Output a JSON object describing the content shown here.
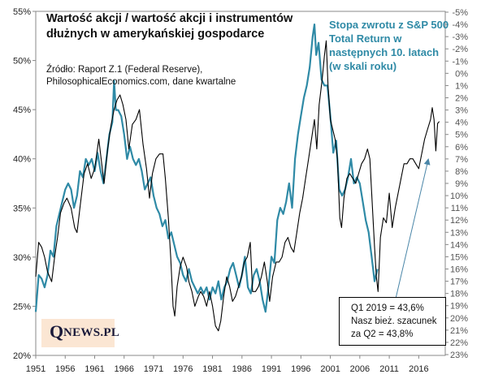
{
  "title": "Wartość akcji / wartość akcji i instrumentów dłużnych w amerykańskiej gospodarce",
  "source_line1": "Źródło: Raport Z.1 (Federal Reserve),",
  "source_line2": "PhilosophicalEconomics.com, dane kwartalne",
  "right_axis_title": "Stopa zwrotu z S&P 500 Total Return w następnych 10. latach (w skali roku)",
  "note": {
    "line1": "Q1 2019 = 43,6%",
    "line2": "Nasz bież. szacunek",
    "line3": "za Q2 = 43,8%"
  },
  "logo": {
    "big": "Q",
    "small": "NEWS.PL"
  },
  "colors": {
    "equity_share": "#000000",
    "sp500_return": "#2f8aa6",
    "arrow": "#4a86a8"
  },
  "chart_data": {
    "type": "line",
    "x_ticks": [
      "1951",
      "1956",
      "1961",
      "1966",
      "1971",
      "1976",
      "1981",
      "1986",
      "1991",
      "1996",
      "2001",
      "2006",
      "2011",
      "2016"
    ],
    "xlim": [
      1951,
      2020.5
    ],
    "y_left": {
      "ticks": [
        "20%",
        "25%",
        "30%",
        "35%",
        "40%",
        "45%",
        "50%",
        "55%"
      ],
      "lim": [
        20,
        55
      ]
    },
    "y_right": {
      "ticks": [
        "-5%",
        "-4%",
        "-3%",
        "-2%",
        "-1%",
        "0%",
        "1%",
        "2%",
        "3%",
        "4%",
        "5%",
        "6%",
        "7%",
        "8%",
        "9%",
        "10%",
        "11%",
        "12%",
        "13%",
        "14%",
        "15%",
        "16%",
        "17%",
        "18%",
        "19%",
        "20%",
        "21%",
        "22%",
        "23%"
      ],
      "lim_top": -5,
      "lim_bottom": 23
    },
    "grid": false,
    "series": [
      {
        "axis": "left",
        "points": [
          [
            1951,
            28.0
          ],
          [
            1951.5,
            31.5
          ],
          [
            1952,
            31.0
          ],
          [
            1952.5,
            30.0
          ],
          [
            1953,
            28.5
          ],
          [
            1953.7,
            27.5
          ],
          [
            1954.2,
            30.0
          ],
          [
            1954.7,
            32.0
          ],
          [
            1955.2,
            34.5
          ],
          [
            1955.8,
            35.5
          ],
          [
            1956.3,
            36.0
          ],
          [
            1957,
            35.0
          ],
          [
            1957.6,
            33.0
          ],
          [
            1958,
            32.5
          ],
          [
            1958.6,
            35.5
          ],
          [
            1959.2,
            38.5
          ],
          [
            1959.8,
            39.5
          ],
          [
            1960.4,
            38.0
          ],
          [
            1961,
            39.0
          ],
          [
            1961.7,
            42.0
          ],
          [
            1962.2,
            39.5
          ],
          [
            1962.6,
            37.5
          ],
          [
            1963.2,
            41.0
          ],
          [
            1963.8,
            43.5
          ],
          [
            1964.3,
            45.0
          ],
          [
            1964.8,
            46.0
          ],
          [
            1965.3,
            46.5
          ],
          [
            1965.8,
            45.5
          ],
          [
            1966.3,
            44.0
          ],
          [
            1966.8,
            41.0
          ],
          [
            1967.4,
            43.5
          ],
          [
            1968,
            44.0
          ],
          [
            1968.6,
            45.0
          ],
          [
            1969.2,
            41.5
          ],
          [
            1969.8,
            39.0
          ],
          [
            1970.3,
            36.0
          ],
          [
            1970.8,
            38.5
          ],
          [
            1971.4,
            40.0
          ],
          [
            1972,
            40.5
          ],
          [
            1972.6,
            40.5
          ],
          [
            1973,
            38.0
          ],
          [
            1973.5,
            34.0
          ],
          [
            1973.9,
            30.0
          ],
          [
            1974.3,
            25.0
          ],
          [
            1974.6,
            24.0
          ],
          [
            1975,
            27.0
          ],
          [
            1975.5,
            29.0
          ],
          [
            1976,
            30.0
          ],
          [
            1976.6,
            29.0
          ],
          [
            1977,
            27.5
          ],
          [
            1977.5,
            26.5
          ],
          [
            1978,
            25.0
          ],
          [
            1978.6,
            26.0
          ],
          [
            1979,
            26.5
          ],
          [
            1979.5,
            26.0
          ],
          [
            1980,
            25.0
          ],
          [
            1980.5,
            26.5
          ],
          [
            1981,
            25.0
          ],
          [
            1981.5,
            23.0
          ],
          [
            1982,
            22.5
          ],
          [
            1982.4,
            23.5
          ],
          [
            1982.9,
            26.0
          ],
          [
            1983.4,
            28.0
          ],
          [
            1983.9,
            27.0
          ],
          [
            1984.4,
            25.5
          ],
          [
            1984.9,
            26.0
          ],
          [
            1985.4,
            27.0
          ],
          [
            1985.9,
            28.0
          ],
          [
            1986.4,
            29.5
          ],
          [
            1986.9,
            30.0
          ],
          [
            1987.4,
            31.5
          ],
          [
            1987.8,
            26.5
          ],
          [
            1988.3,
            26.5
          ],
          [
            1988.8,
            27.0
          ],
          [
            1989.3,
            28.0
          ],
          [
            1989.8,
            29.5
          ],
          [
            1990.3,
            27.5
          ],
          [
            1990.7,
            25.5
          ],
          [
            1991.2,
            28.0
          ],
          [
            1991.8,
            29.5
          ],
          [
            1992.3,
            29.5
          ],
          [
            1992.8,
            30.0
          ],
          [
            1993.3,
            31.5
          ],
          [
            1993.8,
            32.0
          ],
          [
            1994.3,
            31.0
          ],
          [
            1994.8,
            30.5
          ],
          [
            1995.3,
            32.5
          ],
          [
            1995.8,
            34.5
          ],
          [
            1996.3,
            36.0
          ],
          [
            1996.8,
            38.0
          ],
          [
            1997.3,
            40.0
          ],
          [
            1997.8,
            42.0
          ],
          [
            1998.3,
            44.0
          ],
          [
            1998.7,
            41.0
          ],
          [
            1999.1,
            45.5
          ],
          [
            1999.6,
            48.0
          ],
          [
            2000,
            50.5
          ],
          [
            2000.3,
            52.0
          ],
          [
            2000.6,
            47.5
          ],
          [
            2001,
            44.0
          ],
          [
            2001.4,
            43.0
          ],
          [
            2001.8,
            42.0
          ],
          [
            2002.2,
            40.0
          ],
          [
            2002.6,
            34.0
          ],
          [
            2002.9,
            33.0
          ],
          [
            2003.3,
            36.0
          ],
          [
            2003.8,
            38.0
          ],
          [
            2004.3,
            38.5
          ],
          [
            2004.8,
            38.0
          ],
          [
            2005.3,
            37.5
          ],
          [
            2005.8,
            38.5
          ],
          [
            2006.3,
            39.5
          ],
          [
            2006.8,
            40.0
          ],
          [
            2007.3,
            41.0
          ],
          [
            2007.7,
            40.0
          ],
          [
            2008.1,
            35.5
          ],
          [
            2008.5,
            31.0
          ],
          [
            2008.8,
            28.0
          ],
          [
            2009.1,
            26.5
          ],
          [
            2009.5,
            32.0
          ],
          [
            2010,
            34.0
          ],
          [
            2010.5,
            33.5
          ],
          [
            2011,
            36.5
          ],
          [
            2011.5,
            33.0
          ],
          [
            2012,
            35.0
          ],
          [
            2012.5,
            36.5
          ],
          [
            2013,
            38.0
          ],
          [
            2013.5,
            39.5
          ],
          [
            2014,
            39.5
          ],
          [
            2014.5,
            40.0
          ],
          [
            2015,
            40.0
          ],
          [
            2015.5,
            39.5
          ],
          [
            2016,
            39.0
          ],
          [
            2016.5,
            40.5
          ],
          [
            2017,
            42.0
          ],
          [
            2017.5,
            43.0
          ],
          [
            2018,
            44.0
          ],
          [
            2018.3,
            45.2
          ],
          [
            2018.6,
            44.0
          ],
          [
            2018.9,
            40.8
          ],
          [
            2019.2,
            43.6
          ],
          [
            2019.5,
            43.8
          ]
        ]
      },
      {
        "axis": "right",
        "points": [
          [
            1951,
            19.5
          ],
          [
            1951.5,
            16.5
          ],
          [
            1952,
            16.8
          ],
          [
            1952.5,
            17.5
          ],
          [
            1953,
            16.5
          ],
          [
            1953.5,
            14.5
          ],
          [
            1954,
            15.0
          ],
          [
            1954.5,
            12.5
          ],
          [
            1955,
            11.5
          ],
          [
            1955.5,
            10.5
          ],
          [
            1956,
            9.5
          ],
          [
            1956.5,
            9.0
          ],
          [
            1957,
            9.5
          ],
          [
            1957.5,
            11.0
          ],
          [
            1958,
            10.0
          ],
          [
            1958.5,
            8.0
          ],
          [
            1959,
            8.5
          ],
          [
            1959.5,
            7.0
          ],
          [
            1960,
            7.5
          ],
          [
            1960.5,
            7.0
          ],
          [
            1961,
            8.0
          ],
          [
            1961.5,
            6.5
          ],
          [
            1962,
            8.0
          ],
          [
            1962.5,
            9.0
          ],
          [
            1963,
            7.0
          ],
          [
            1963.5,
            5.0
          ],
          [
            1964,
            4.0
          ],
          [
            1964.3,
            0.6
          ],
          [
            1964.6,
            3.0
          ],
          [
            1965,
            3.0
          ],
          [
            1965.5,
            3.5
          ],
          [
            1966,
            5.0
          ],
          [
            1966.5,
            7.0
          ],
          [
            1967,
            6.0
          ],
          [
            1967.5,
            7.0
          ],
          [
            1968,
            7.5
          ],
          [
            1968.5,
            7.0
          ],
          [
            1969,
            8.0
          ],
          [
            1969.5,
            9.5
          ],
          [
            1970,
            9.0
          ],
          [
            1970.5,
            8.5
          ],
          [
            1971,
            10.0
          ],
          [
            1971.5,
            11.0
          ],
          [
            1972,
            11.5
          ],
          [
            1972.5,
            12.5
          ],
          [
            1973,
            12.0
          ],
          [
            1973.5,
            13.5
          ],
          [
            1974,
            13.0
          ],
          [
            1974.5,
            14.0
          ],
          [
            1975,
            15.0
          ],
          [
            1975.5,
            15.5
          ],
          [
            1976,
            16.5
          ],
          [
            1976.5,
            17.0
          ],
          [
            1977,
            16.0
          ],
          [
            1977.5,
            17.0
          ],
          [
            1978,
            17.5
          ],
          [
            1978.5,
            18.0
          ],
          [
            1979,
            17.5
          ],
          [
            1979.5,
            18.0
          ],
          [
            1980,
            17.5
          ],
          [
            1980.5,
            18.5
          ],
          [
            1981,
            17.5
          ],
          [
            1981.5,
            18.0
          ],
          [
            1982,
            17.0
          ],
          [
            1982.5,
            18.5
          ],
          [
            1983,
            17.5
          ],
          [
            1983.5,
            17.0
          ],
          [
            1984,
            16.0
          ],
          [
            1984.5,
            15.5
          ],
          [
            1985,
            16.5
          ],
          [
            1985.5,
            17.5
          ],
          [
            1986,
            16.5
          ],
          [
            1986.5,
            15.0
          ],
          [
            1987,
            17.5
          ],
          [
            1987.5,
            18.0
          ],
          [
            1988,
            16.5
          ],
          [
            1988.5,
            16.0
          ],
          [
            1989,
            17.0
          ],
          [
            1989.5,
            18.5
          ],
          [
            1990,
            19.5
          ],
          [
            1990.5,
            17.5
          ],
          [
            1991,
            15.0
          ],
          [
            1991.5,
            15.5
          ],
          [
            1992,
            12.0
          ],
          [
            1992.5,
            11.0
          ],
          [
            1993,
            11.5
          ],
          [
            1993.5,
            10.5
          ],
          [
            1994,
            9.0
          ],
          [
            1994.5,
            11.0
          ],
          [
            1995,
            7.0
          ],
          [
            1995.5,
            5.0
          ],
          [
            1996,
            3.5
          ],
          [
            1996.5,
            2.0
          ],
          [
            1997,
            1.0
          ],
          [
            1997.5,
            -0.5
          ],
          [
            1998,
            -3.0
          ],
          [
            1998.3,
            -4.0
          ],
          [
            1998.6,
            -1.5
          ],
          [
            1999,
            -2.5
          ],
          [
            1999.5,
            0.5
          ],
          [
            2000,
            1.0
          ],
          [
            2000.5,
            1.0
          ],
          [
            2001,
            3.5
          ],
          [
            2001.5,
            6.5
          ],
          [
            2002,
            5.5
          ],
          [
            2002.5,
            9.5
          ],
          [
            2003,
            10.0
          ],
          [
            2003.5,
            9.5
          ],
          [
            2004,
            8.5
          ],
          [
            2004.5,
            7.0
          ],
          [
            2005,
            9.0
          ],
          [
            2005.5,
            8.5
          ],
          [
            2006,
            9.0
          ],
          [
            2006.5,
            10.5
          ],
          [
            2007,
            12.0
          ],
          [
            2007.5,
            13.0
          ],
          [
            2008,
            15.0
          ],
          [
            2008.5,
            17.0
          ],
          [
            2009,
            16.0
          ]
        ]
      }
    ]
  }
}
